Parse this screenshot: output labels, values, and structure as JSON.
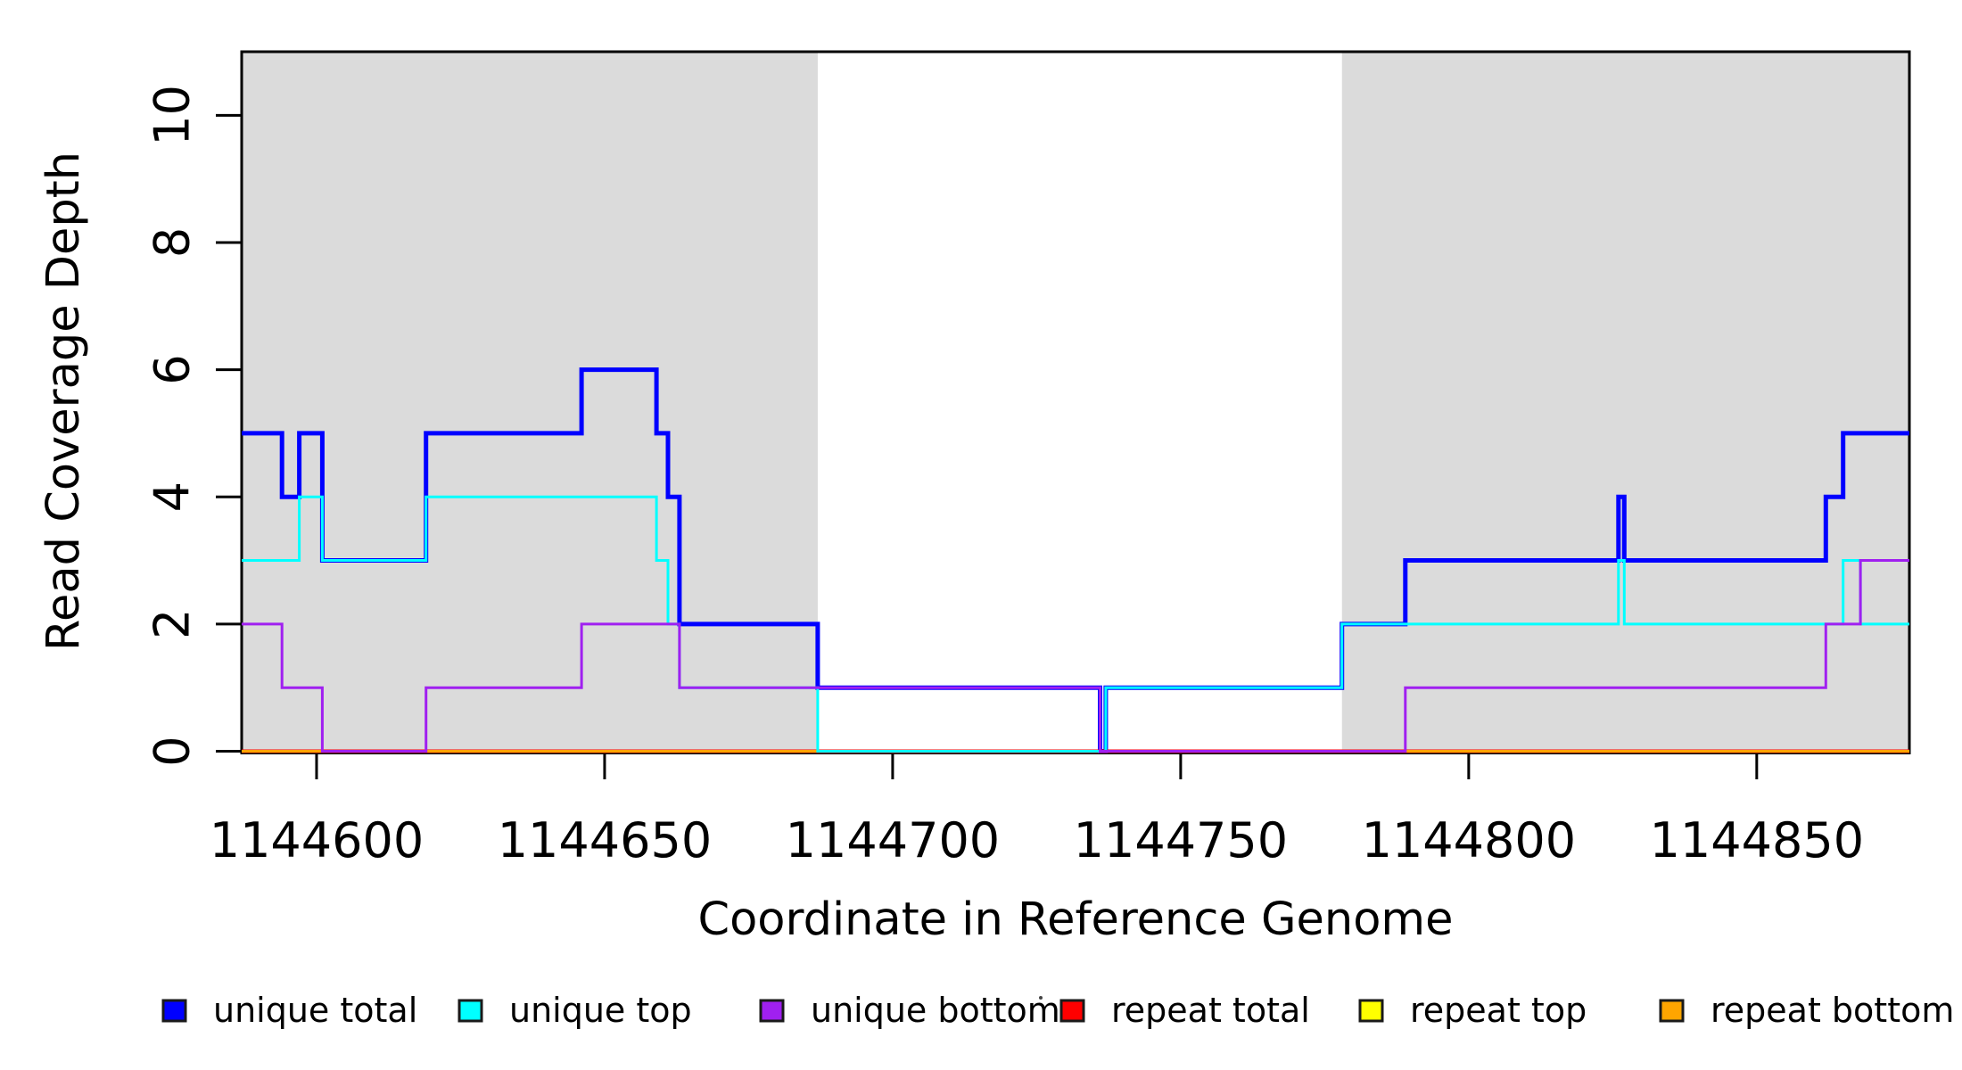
{
  "chart_data": {
    "type": "line",
    "subtype": "step",
    "title": "",
    "xlabel": "Coordinate in Reference Genome",
    "ylabel": "Read Coverage Depth",
    "xlim": [
      1144587,
      1144876.5
    ],
    "ylim": [
      0,
      11
    ],
    "x_ticks": [
      1144600,
      1144650,
      1144700,
      1144750,
      1144800,
      1144850
    ],
    "y_ticks": [
      0,
      2,
      4,
      6,
      8,
      10
    ],
    "grid": false,
    "legend_position": "bottom",
    "background_color": "#ffffff",
    "shaded_region_color": "#dbdbdb",
    "shaded_regions": [
      {
        "x0": 1144587,
        "x1": 1144687
      },
      {
        "x0": 1144778,
        "x1": 1144876.5
      }
    ],
    "series": [
      {
        "name": "unique total",
        "color": "#0000ff",
        "width": 5,
        "steps": [
          [
            1144587,
            5
          ],
          [
            1144594,
            4
          ],
          [
            1144597,
            5
          ],
          [
            1144601,
            3
          ],
          [
            1144619,
            5
          ],
          [
            1144646,
            6
          ],
          [
            1144659,
            5
          ],
          [
            1144661,
            4
          ],
          [
            1144663,
            2
          ],
          [
            1144687,
            1
          ],
          [
            1144736,
            0
          ],
          [
            1144737,
            1
          ],
          [
            1144778,
            2
          ],
          [
            1144789,
            3
          ],
          [
            1144826,
            4
          ],
          [
            1144827,
            3
          ],
          [
            1144862,
            4
          ],
          [
            1144865,
            5
          ]
        ]
      },
      {
        "name": "repeat total",
        "color": "#ff0000",
        "width": 4,
        "steps": [
          [
            1144587,
            0
          ]
        ]
      },
      {
        "name": "repeat top",
        "color": "#ffff00",
        "width": 3,
        "steps": [
          [
            1144587,
            0
          ]
        ]
      },
      {
        "name": "repeat bottom",
        "color": "#ffa500",
        "width": 3,
        "steps": [
          [
            1144587,
            0
          ]
        ]
      },
      {
        "name": "unique top",
        "color": "#00ffff",
        "width": 3,
        "steps": [
          [
            1144587,
            3
          ],
          [
            1144597,
            4
          ],
          [
            1144601,
            3
          ],
          [
            1144619,
            4
          ],
          [
            1144659,
            3
          ],
          [
            1144661,
            2
          ],
          [
            1144663,
            1
          ],
          [
            1144687,
            0
          ],
          [
            1144737,
            1
          ],
          [
            1144778,
            2
          ],
          [
            1144826,
            3
          ],
          [
            1144827,
            2
          ],
          [
            1144865,
            3
          ],
          [
            1144868,
            2
          ]
        ]
      },
      {
        "name": "unique bottom",
        "color": "#a020f0",
        "width": 3,
        "steps": [
          [
            1144587,
            2
          ],
          [
            1144594,
            1
          ],
          [
            1144601,
            0
          ],
          [
            1144619,
            1
          ],
          [
            1144646,
            2
          ],
          [
            1144663,
            1
          ],
          [
            1144736,
            0
          ],
          [
            1144789,
            1
          ],
          [
            1144862,
            2
          ],
          [
            1144868,
            3
          ]
        ]
      }
    ],
    "legend": [
      {
        "label": "unique total",
        "color": "#0000ff"
      },
      {
        "label": "unique top",
        "color": "#00ffff"
      },
      {
        "label": "unique bottom",
        "color": "#a020f0"
      },
      {
        "label": "repeat total",
        "color": "#ff0000"
      },
      {
        "label": "repeat top",
        "color": "#ffff00"
      },
      {
        "label": "repeat bottom",
        "color": "#ffa500"
      }
    ]
  }
}
